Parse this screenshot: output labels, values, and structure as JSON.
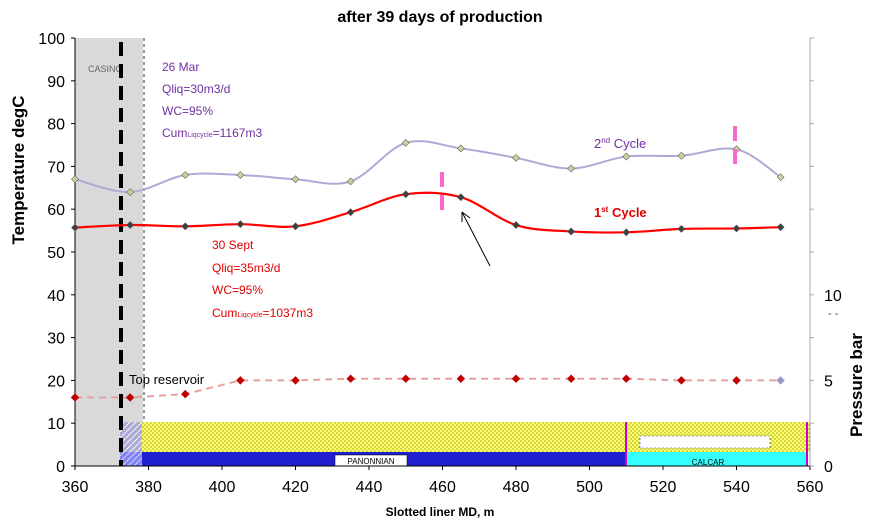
{
  "chart_data": {
    "type": "line",
    "title": "after 39 days of production",
    "xlabel": "Slotted liner MD, m",
    "ylabel": "Temperature degC",
    "y2label": "Pressure bar",
    "xlim": [
      360,
      560
    ],
    "ylim": [
      0,
      100
    ],
    "x_ticks": [
      "360",
      "380",
      "400",
      "420",
      "440",
      "460",
      "480",
      "500",
      "520",
      "540",
      "560"
    ],
    "y_ticks": [
      "0",
      "10",
      "20",
      "30",
      "40",
      "50",
      "60",
      "70",
      "80",
      "90",
      "100"
    ],
    "y2_ticks": [
      "0",
      "5",
      "10"
    ],
    "y2_top_label": "- -",
    "grid": false,
    "series": [
      {
        "name": "2nd Cycle",
        "role": "temperature",
        "color": "#b4a7d6",
        "marker_color": "#c2d69b",
        "x": [
          360,
          375,
          390,
          405,
          420,
          435,
          450,
          465,
          480,
          495,
          510,
          525,
          540,
          552
        ],
        "y": [
          67,
          64,
          68,
          68,
          67,
          66.5,
          75.5,
          74.2,
          72,
          69.5,
          72.3,
          72.5,
          74,
          67.5
        ]
      },
      {
        "name": "1st Cycle",
        "role": "temperature",
        "color": "#ff0000",
        "marker_color": "#404040",
        "x": [
          360,
          375,
          390,
          405,
          420,
          435,
          450,
          465,
          480,
          495,
          510,
          525,
          540,
          552
        ],
        "y": [
          55.7,
          56.3,
          56,
          56.5,
          56,
          59.3,
          63.5,
          62.8,
          56.3,
          54.8,
          54.6,
          55.4,
          55.5,
          55.8
        ]
      },
      {
        "name": "",
        "role": "pressure",
        "color": "#e6a0a0",
        "marker_color": "#c00000",
        "x": [
          360,
          375,
          390,
          405,
          420,
          435,
          450,
          465,
          480,
          495,
          510,
          525,
          540,
          552
        ],
        "y": [
          4,
          4,
          4.2,
          5,
          5,
          5.1,
          5.1,
          5.1,
          5.1,
          5.1,
          5.1,
          5,
          5,
          5
        ]
      }
    ],
    "y2lim": [
      0,
      25
    ],
    "zones": {
      "casing_label": "CASING",
      "casing_x": [
        360,
        379
      ],
      "top_reservoir_x": 373,
      "formation_labels": [
        "PANONNIAN",
        "CALCAR"
      ],
      "formation_boundary_x": 511
    },
    "annotations": {
      "top_reservoir": "Top reservoir",
      "cycle2_label_main": "2",
      "cycle2_label_sup": "nd",
      "cycle2_label_rest": " Cycle",
      "cycle1_label_main": "1",
      "cycle1_label_sup": "st",
      "cycle1_label_rest": " Cycle",
      "box2": {
        "date": "26 Mar",
        "qliq": "Qliq=30m3/d",
        "wc": "WC=95%",
        "cum_main": "Cum",
        "cum_sub": "Liqcycle",
        "cum_value": "=1167m3"
      },
      "box1": {
        "date": "30 Sept",
        "qliq": "Qliq=35m3/d",
        "wc": "WC=95%",
        "cum_main": "Cum",
        "cum_sub": "Liqcycle",
        "cum_value": "=1037m3"
      }
    },
    "colors": {
      "cycle2_text": "#7030a0",
      "cycle1_text": "#e00000",
      "sand_fill": "#ffff66",
      "panonnian_fill": "#2020d0",
      "calcar_fill": "#33ffff",
      "casing_fill": "#d9d9d9",
      "marker_pink": "#ff66cc"
    }
  }
}
